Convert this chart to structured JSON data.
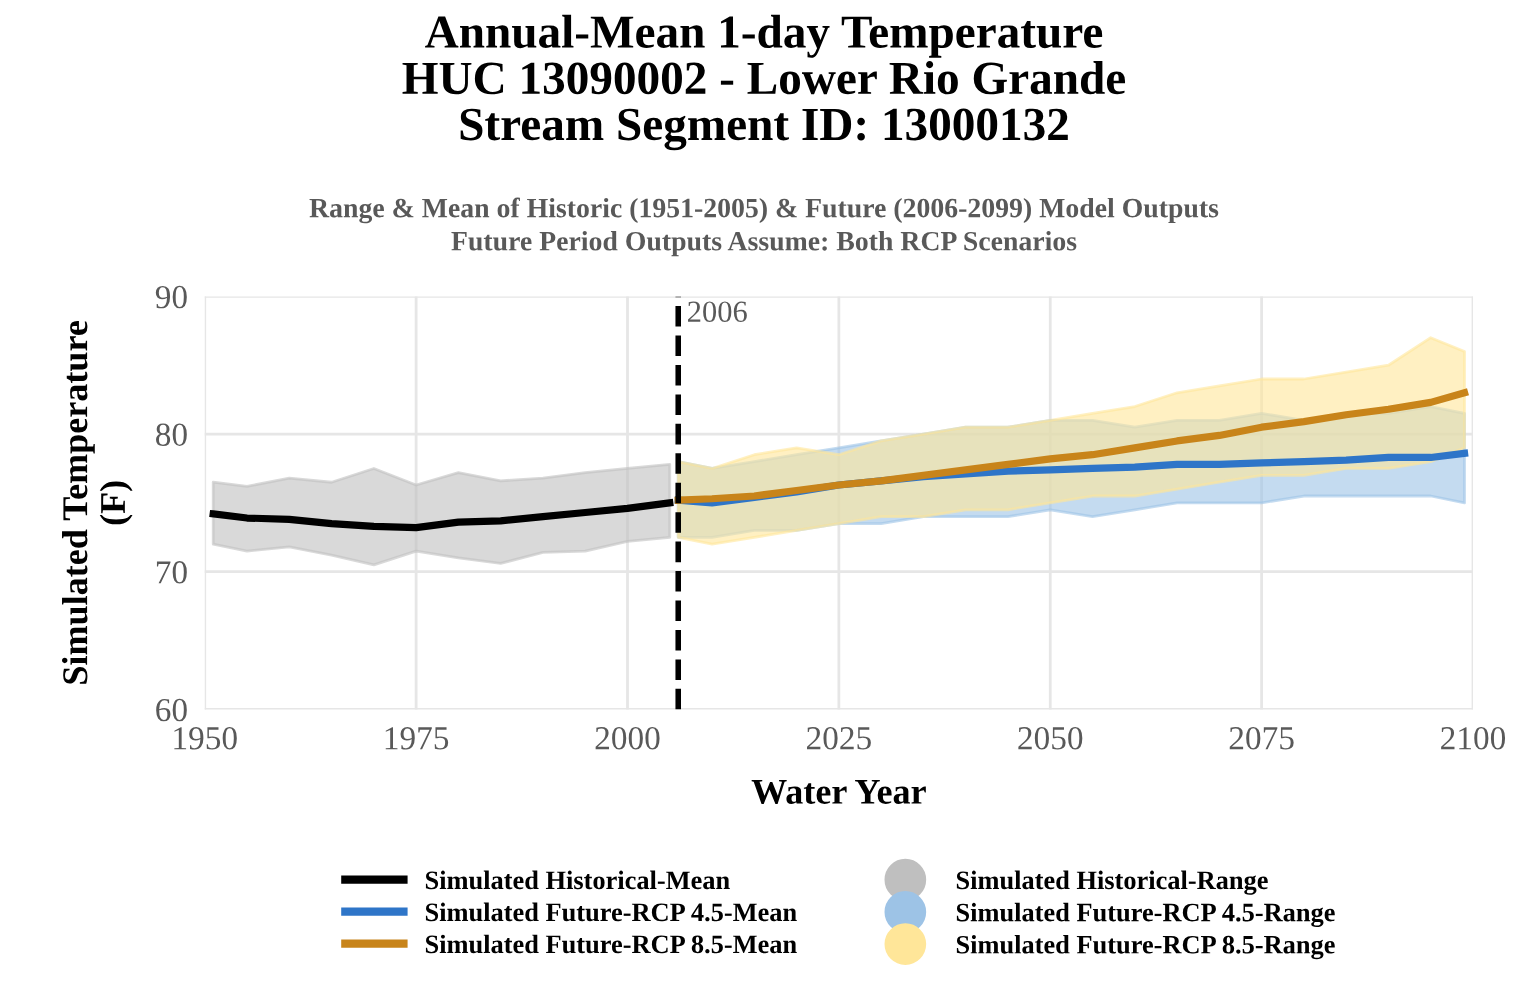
{
  "chart_data": {
    "type": "line",
    "title": "Annual-Mean 1-day Temperature\nHUC 13090002 - Lower Rio Grande\nStream Segment ID: 13000132",
    "subtitle": "Range & Mean of Historic (1951-2005) & Future (2006-2099) Model Outputs\nFuture Period Outputs Assume: Both RCP Scenarios",
    "xlabel": "Water Year",
    "ylabel": "Simulated Temperature\n(F)",
    "xlim": [
      1950,
      2100
    ],
    "ylim": [
      60,
      90
    ],
    "xticks": [
      1950,
      1975,
      2000,
      2025,
      2050,
      2075,
      2100
    ],
    "yticks": [
      60,
      70,
      80,
      90
    ],
    "grid": true,
    "legend": "bottom",
    "line_style": "solid",
    "marker": "none",
    "ref_lines": [
      {
        "axis": "x",
        "value": 2006,
        "label": "2006",
        "color": "#000000",
        "line_style": "dashed"
      }
    ],
    "series": [
      {
        "name": "Simulated Historical-Mean",
        "color": "#000000",
        "x": [
          1951,
          1955,
          1960,
          1965,
          1970,
          1975,
          1980,
          1985,
          1990,
          1995,
          2000,
          2005
        ],
        "values": [
          74.2,
          73.9,
          73.8,
          73.5,
          73.3,
          73.2,
          73.6,
          73.7,
          74.0,
          74.3,
          74.6,
          75.0
        ],
        "lower": [
          72.0,
          71.5,
          71.8,
          71.2,
          70.5,
          71.5,
          71.0,
          70.6,
          71.4,
          71.5,
          72.2,
          72.5
        ],
        "upper": [
          76.5,
          76.2,
          76.8,
          76.5,
          77.5,
          76.3,
          77.2,
          76.6,
          76.8,
          77.2,
          77.5,
          77.8
        ]
      },
      {
        "name": "Simulated Historical-Range",
        "type": "area",
        "color": "#bfbfbf"
      },
      {
        "name": "Simulated Future-RCP 4.5-Mean",
        "color": "#2e75c8",
        "x": [
          2006,
          2010,
          2015,
          2020,
          2025,
          2030,
          2035,
          2040,
          2045,
          2050,
          2055,
          2060,
          2065,
          2070,
          2075,
          2080,
          2085,
          2090,
          2095,
          2099
        ],
        "values": [
          75.2,
          75.0,
          75.4,
          75.8,
          76.3,
          76.6,
          76.9,
          77.1,
          77.3,
          77.4,
          77.5,
          77.6,
          77.8,
          77.8,
          77.9,
          78.0,
          78.1,
          78.3,
          78.3,
          78.6
        ],
        "lower": [
          72.5,
          72.5,
          73,
          73,
          73.5,
          73.5,
          74,
          74,
          74,
          74.5,
          74,
          74.5,
          75,
          75,
          75,
          75.5,
          75.5,
          75.5,
          75.5,
          75
        ],
        "upper": [
          78,
          77.5,
          78,
          78.5,
          79,
          79.5,
          80,
          80.5,
          80.5,
          81,
          81,
          80.5,
          81,
          81,
          81.5,
          81,
          81.5,
          81.5,
          82,
          81.5
        ]
      },
      {
        "name": "Simulated Future-RCP 4.5-Range",
        "type": "area",
        "color": "#9dc3e6"
      },
      {
        "name": "Simulated Future-RCP 8.5-Mean",
        "color": "#c8841a",
        "x": [
          2006,
          2010,
          2015,
          2020,
          2025,
          2030,
          2035,
          2040,
          2045,
          2050,
          2055,
          2060,
          2065,
          2070,
          2075,
          2080,
          2085,
          2090,
          2095,
          2099
        ],
        "values": [
          75.2,
          75.3,
          75.5,
          75.9,
          76.3,
          76.6,
          77.0,
          77.4,
          77.8,
          78.2,
          78.5,
          79.0,
          79.5,
          79.9,
          80.5,
          80.9,
          81.4,
          81.8,
          82.3,
          83.0
        ],
        "lower": [
          72.5,
          72,
          72.5,
          73,
          73.5,
          74,
          74,
          74.5,
          74.5,
          75,
          75.5,
          75.5,
          76,
          76.5,
          77,
          77,
          77.5,
          77.5,
          78,
          79
        ],
        "upper": [
          78,
          77.5,
          78.5,
          79,
          78.5,
          79.5,
          80,
          80.5,
          80.5,
          81,
          81.5,
          82,
          83,
          83.5,
          84,
          84,
          84.5,
          85,
          87,
          86
        ]
      },
      {
        "name": "Simulated Future-RCP 8.5-Range",
        "type": "area",
        "color": "#ffe699"
      }
    ]
  }
}
